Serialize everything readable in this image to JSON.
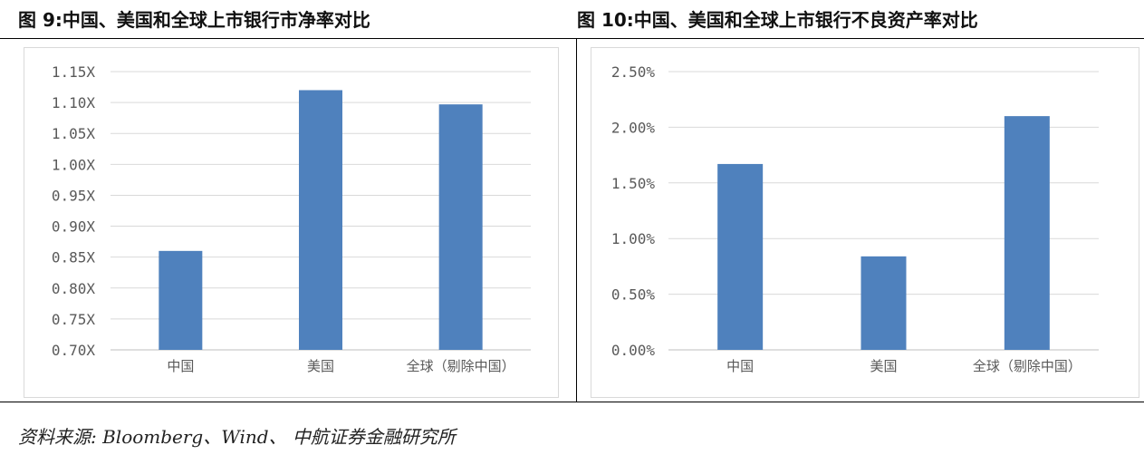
{
  "left_title": "图 9:中国、美国和全球上市银行市净率对比",
  "right_title": "图 10:中国、美国和全球上市银行不良资产率对比",
  "source": "资料来源: Bloomberg、Wind、 中航证券金融研究所",
  "colors": {
    "bar": "#4f81bd",
    "grid": "#d9d9d9",
    "axis_text": "#595959"
  },
  "chart_data": [
    {
      "type": "bar",
      "categories": [
        "中国",
        "美国",
        "全球（剔除中国）"
      ],
      "values": [
        0.86,
        1.12,
        1.097
      ],
      "ylim": [
        0.7,
        1.15
      ],
      "yticks": [
        "0.70X",
        "0.75X",
        "0.80X",
        "0.85X",
        "0.90X",
        "0.95X",
        "1.00X",
        "1.05X",
        "1.10X",
        "1.15X"
      ],
      "grid": true,
      "legend": "none"
    },
    {
      "type": "bar",
      "categories": [
        "中国",
        "美国",
        "全球（剔除中国）"
      ],
      "values": [
        1.67,
        0.84,
        2.1
      ],
      "ylim": [
        0,
        2.5
      ],
      "yticks": [
        "0.00%",
        "0.50%",
        "1.00%",
        "1.50%",
        "2.00%",
        "2.50%"
      ],
      "grid": true,
      "legend": "none"
    }
  ]
}
